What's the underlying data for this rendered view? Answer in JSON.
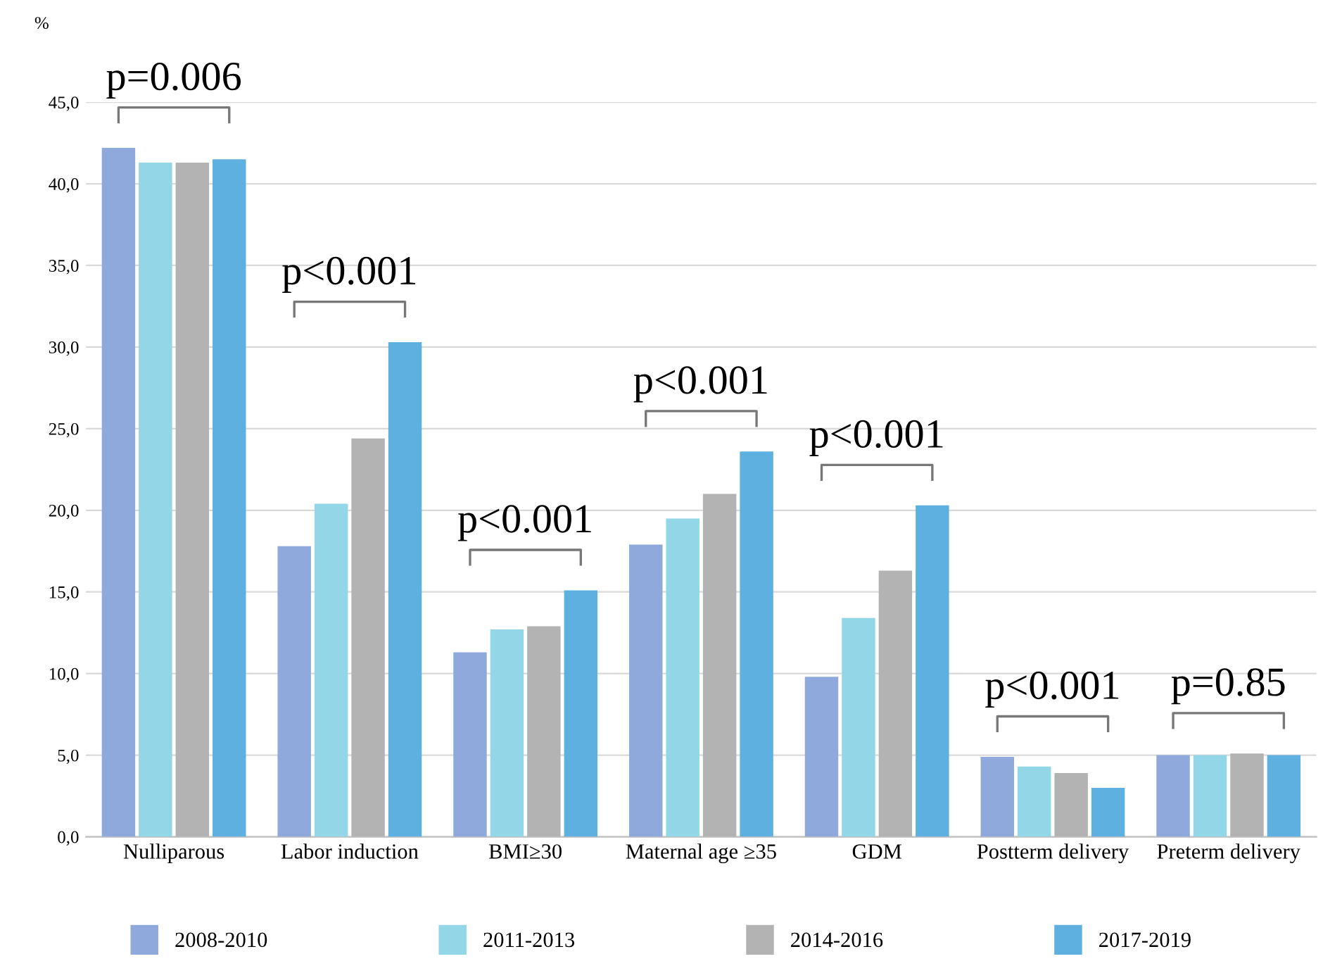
{
  "chart_data": {
    "type": "bar",
    "ylabel": "%",
    "categories": [
      "Nulliparous",
      "Labor induction",
      "BMI≥30",
      "Maternal age ≥35",
      "GDM",
      "Postterm delivery",
      "Preterm delivery"
    ],
    "series": [
      {
        "name": "2008-2010",
        "color": "#8fa9dc",
        "values": [
          42.2,
          17.8,
          11.3,
          17.9,
          9.8,
          4.9,
          5.0
        ]
      },
      {
        "name": "2011-2013",
        "color": "#92d6e8",
        "values": [
          41.3,
          20.4,
          12.7,
          19.5,
          13.4,
          4.3,
          5.0
        ]
      },
      {
        "name": "2014-2016",
        "color": "#b3b3b3",
        "values": [
          41.3,
          24.4,
          12.9,
          21.0,
          16.3,
          3.9,
          5.1
        ]
      },
      {
        "name": "2017-2019",
        "color": "#5eb0e0",
        "values": [
          41.5,
          30.3,
          15.1,
          23.6,
          20.3,
          3.0,
          5.0
        ]
      }
    ],
    "ylim": [
      0,
      45
    ],
    "yticks": [
      {
        "value": 0,
        "label": "0,0"
      },
      {
        "value": 5,
        "label": "5,0"
      },
      {
        "value": 10,
        "label": "10,0"
      },
      {
        "value": 15,
        "label": "15,0"
      },
      {
        "value": 20,
        "label": "20,0"
      },
      {
        "value": 25,
        "label": "25,0"
      },
      {
        "value": 30,
        "label": "30,0"
      },
      {
        "value": 35,
        "label": "35,0"
      },
      {
        "value": 40,
        "label": "40,0"
      },
      {
        "value": 45,
        "label": "45,0"
      }
    ],
    "grid": "y",
    "legend": "bottom",
    "annotations": [
      "p=0.006",
      "p<0.001",
      "p<0.001",
      "p<0.001",
      "p<0.001",
      "p<0.001",
      "p=0.85"
    ]
  }
}
